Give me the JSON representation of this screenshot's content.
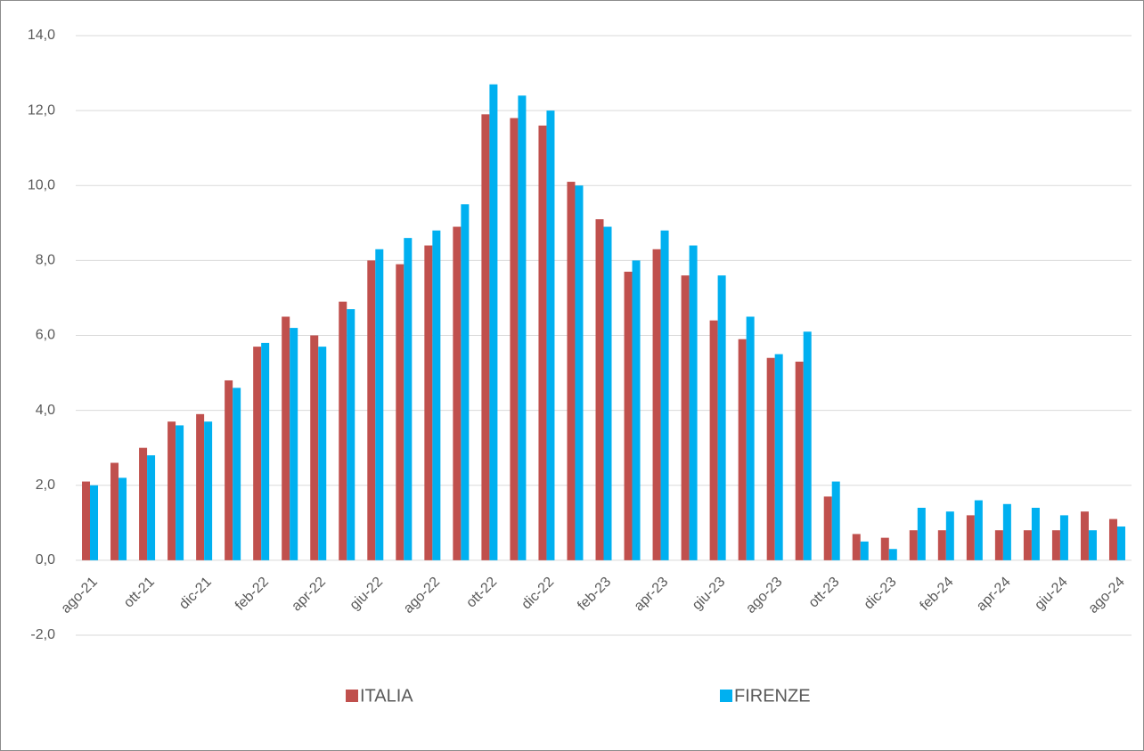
{
  "chart_data": {
    "type": "bar",
    "categories": [
      "ago-21",
      null,
      "ott-21",
      null,
      "dic-21",
      null,
      "feb-22",
      null,
      "apr-22",
      null,
      "giu-22",
      null,
      "ago-22",
      null,
      "ott-22",
      null,
      "dic-22",
      null,
      "feb-23",
      null,
      "apr-23",
      null,
      "giu-23",
      null,
      "ago-23",
      null,
      "ott-23",
      null,
      "dic-23",
      null,
      "feb-24",
      null,
      "apr-24",
      null,
      "giu-24",
      null,
      "ago-24"
    ],
    "series": [
      {
        "name": "ITALIA",
        "color": "#c0504d",
        "values": [
          2.1,
          2.6,
          3.0,
          3.7,
          3.9,
          4.8,
          5.7,
          6.5,
          6.0,
          6.9,
          8.0,
          7.9,
          8.4,
          8.9,
          11.9,
          11.8,
          11.6,
          10.1,
          9.1,
          7.7,
          8.3,
          7.6,
          6.4,
          5.9,
          5.4,
          5.3,
          1.7,
          0.7,
          0.6,
          0.8,
          0.8,
          1.2,
          0.8,
          0.8,
          0.8,
          1.3,
          1.1
        ]
      },
      {
        "name": "FIRENZE",
        "color": "#00b0f0",
        "values": [
          2.0,
          2.2,
          2.8,
          3.6,
          3.7,
          4.6,
          5.8,
          6.2,
          5.7,
          6.7,
          8.3,
          8.6,
          8.8,
          9.5,
          12.7,
          12.4,
          12.0,
          10.0,
          8.9,
          8.0,
          8.8,
          8.4,
          7.6,
          6.5,
          5.5,
          6.1,
          2.1,
          0.5,
          0.3,
          1.4,
          1.3,
          1.6,
          1.5,
          1.4,
          1.2,
          0.8,
          0.9
        ]
      }
    ],
    "ylim": [
      -2,
      14
    ],
    "yticks": [
      {
        "value": -2,
        "label": "-2,0"
      },
      {
        "value": 0,
        "label": "0,0"
      },
      {
        "value": 2,
        "label": "2,0"
      },
      {
        "value": 4,
        "label": "4,0"
      },
      {
        "value": 6,
        "label": "6,0"
      },
      {
        "value": 8,
        "label": "8,0"
      },
      {
        "value": 10,
        "label": "10,0"
      },
      {
        "value": 12,
        "label": "12,0"
      },
      {
        "value": 14,
        "label": "14,0"
      }
    ],
    "grid": true,
    "legend": "bottom"
  }
}
